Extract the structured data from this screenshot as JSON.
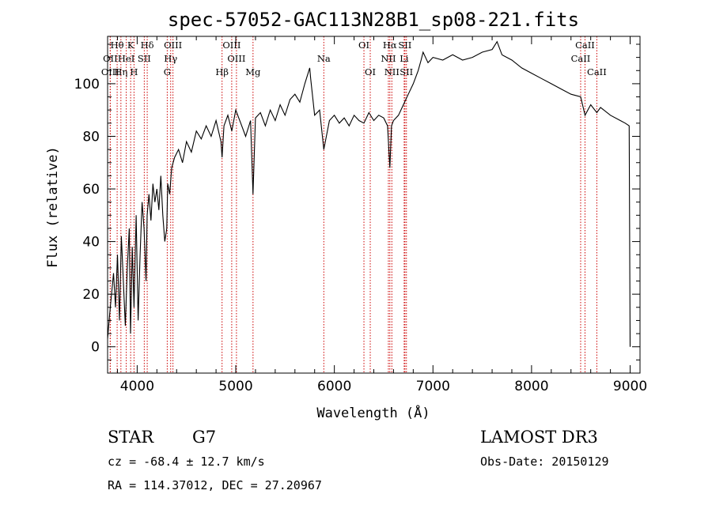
{
  "chart_data": {
    "type": "line",
    "title": "spec-57052-GAC113N28B1_sp08-221.fits",
    "xlabel": "Wavelength (Å)",
    "ylabel": "Flux (relative)",
    "xlim": [
      3700,
      9100
    ],
    "ylim": [
      -10,
      118
    ],
    "xticks": [
      4000,
      5000,
      6000,
      7000,
      8000,
      9000
    ],
    "yticks": [
      0,
      20,
      40,
      60,
      80,
      100
    ],
    "xtick_labels": [
      "4000",
      "5000",
      "6000",
      "7000",
      "8000",
      "9000"
    ],
    "ytick_labels": [
      "0",
      "20",
      "40",
      "60",
      "80",
      "100"
    ],
    "series": [
      {
        "name": "flux",
        "x": [
          3700,
          3720,
          3740,
          3760,
          3780,
          3800,
          3820,
          3840,
          3860,
          3880,
          3900,
          3920,
          3933,
          3950,
          3968,
          3990,
          4010,
          4030,
          4050,
          4070,
          4090,
          4101,
          4120,
          4140,
          4160,
          4180,
          4200,
          4220,
          4240,
          4260,
          4280,
          4300,
          4310,
          4330,
          4350,
          4380,
          4420,
          4460,
          4500,
          4550,
          4600,
          4650,
          4700,
          4750,
          4800,
          4850,
          4861,
          4880,
          4920,
          4960,
          5000,
          5050,
          5100,
          5150,
          5175,
          5200,
          5250,
          5300,
          5350,
          5400,
          5450,
          5500,
          5550,
          5600,
          5650,
          5700,
          5750,
          5760,
          5800,
          5850,
          5893,
          5950,
          6000,
          6050,
          6100,
          6150,
          6200,
          6250,
          6300,
          6350,
          6400,
          6450,
          6500,
          6540,
          6563,
          6580,
          6600,
          6650,
          6700,
          6750,
          6800,
          6850,
          6880,
          6900,
          6950,
          7000,
          7100,
          7200,
          7300,
          7400,
          7500,
          7600,
          7650,
          7700,
          7800,
          7900,
          8000,
          8100,
          8200,
          8300,
          8400,
          8498,
          8542,
          8600,
          8662,
          8700,
          8800,
          8900,
          8950,
          8990,
          9000
        ],
        "y": [
          3,
          12,
          20,
          28,
          15,
          35,
          10,
          42,
          25,
          8,
          30,
          45,
          5,
          38,
          15,
          50,
          10,
          35,
          55,
          45,
          25,
          50,
          58,
          48,
          62,
          55,
          60,
          52,
          65,
          50,
          40,
          45,
          62,
          58,
          68,
          72,
          75,
          70,
          78,
          74,
          82,
          79,
          84,
          80,
          86,
          78,
          72,
          84,
          88,
          82,
          90,
          85,
          80,
          86,
          58,
          87,
          89,
          84,
          90,
          86,
          92,
          88,
          94,
          96,
          93,
          100,
          106,
          102,
          88,
          90,
          75,
          86,
          88,
          85,
          87,
          84,
          88,
          86,
          85,
          89,
          86,
          88,
          87,
          84,
          68,
          84,
          86,
          88,
          92,
          96,
          100,
          105,
          109,
          112,
          108,
          110,
          109,
          111,
          109,
          110,
          112,
          113,
          116,
          111,
          109,
          106,
          104,
          102,
          100,
          98,
          96,
          95,
          88,
          92,
          89,
          91,
          88,
          86,
          85,
          84,
          0
        ]
      }
    ],
    "lines": [
      {
        "name": "Hθ",
        "x": 3797,
        "row": 1
      },
      {
        "name": "OII",
        "x": 3727,
        "row": 2
      },
      {
        "name": "OIII",
        "x": 3727,
        "row": 3
      },
      {
        "name": "Hη",
        "x": 3835,
        "row": 3
      },
      {
        "name": "HeI",
        "x": 3889,
        "row": 2
      },
      {
        "name": "K",
        "x": 3934,
        "row": 1
      },
      {
        "name": "H",
        "x": 3968,
        "row": 3
      },
      {
        "name": "SII",
        "x": 4072,
        "row": 2
      },
      {
        "name": "Hδ",
        "x": 4102,
        "row": 1
      },
      {
        "name": "OIII",
        "x": 4363,
        "row": 1
      },
      {
        "name": "Hγ",
        "x": 4340,
        "row": 2
      },
      {
        "name": "G",
        "x": 4305,
        "row": 3
      },
      {
        "name": "Hβ",
        "x": 4861,
        "row": 3
      },
      {
        "name": "OIII",
        "x": 4959,
        "row": 1
      },
      {
        "name": "OIII",
        "x": 5007,
        "row": 2
      },
      {
        "name": "Mg",
        "x": 5175,
        "row": 3
      },
      {
        "name": "Na",
        "x": 5893,
        "row": 2
      },
      {
        "name": "OI",
        "x": 6300,
        "row": 1
      },
      {
        "name": "OI",
        "x": 6364,
        "row": 3
      },
      {
        "name": "Hα",
        "x": 6563,
        "row": 1
      },
      {
        "name": "NII",
        "x": 6548,
        "row": 2
      },
      {
        "name": "NII",
        "x": 6583,
        "row": 3
      },
      {
        "name": "SII",
        "x": 6716,
        "row": 1
      },
      {
        "name": "Li",
        "x": 6708,
        "row": 2
      },
      {
        "name": "SII",
        "x": 6731,
        "row": 3
      },
      {
        "name": "CaII",
        "x": 8498,
        "row": 2
      },
      {
        "name": "CaII",
        "x": 8542,
        "row": 1
      },
      {
        "name": "CaII",
        "x": 8662,
        "row": 3
      }
    ]
  },
  "footer": {
    "object_type": "STAR",
    "subclass": "G7",
    "survey": "LAMOST DR3",
    "redshift": "cz = -68.4 ± 12.7 km/s",
    "obs_date": "Obs-Date: 20150129",
    "coords": "RA = 114.37012, DEC =  27.20967"
  },
  "colors": {
    "line_marker": "#cc0000",
    "spectrum": "#000000"
  }
}
